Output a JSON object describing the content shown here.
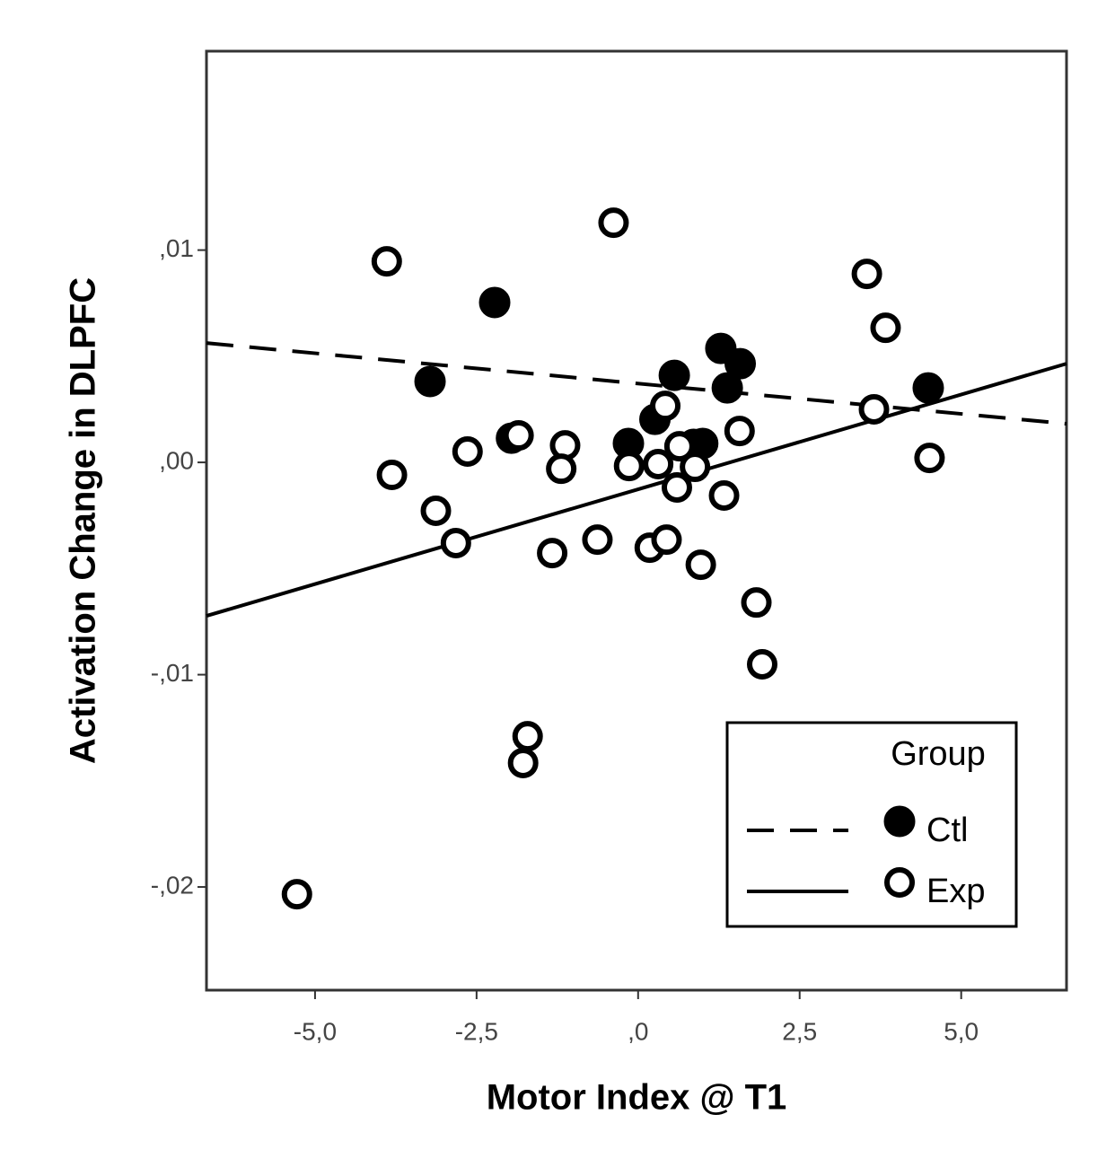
{
  "chart_data": {
    "type": "scatter",
    "x_label": "Motor Index @ T1",
    "y_label": "Activation Change in DLPFC",
    "xlim": [
      -6.68,
      6.63
    ],
    "ylim": [
      -0.02486,
      0.01937
    ],
    "xticks": [
      {
        "value": -5,
        "label": "-5,0"
      },
      {
        "value": -2.5,
        "label": "-2,5"
      },
      {
        "value": 0,
        "label": ",0"
      },
      {
        "value": 2.5,
        "label": "2,5"
      },
      {
        "value": 5,
        "label": "5,0"
      }
    ],
    "yticks": [
      {
        "value": -0.02,
        "label": "-,02"
      },
      {
        "value": -0.01,
        "label": "-,01"
      },
      {
        "value": 0,
        "label": ",00"
      },
      {
        "value": 0.01,
        "label": ",01"
      }
    ],
    "legend_title": "Group",
    "legend_position": "lower right",
    "series": [
      {
        "name": "Ctl",
        "color": "#000000",
        "marker": "filled",
        "line_style": "dashed",
        "x": [
          -2.22,
          -3.22,
          -1.96,
          -0.15,
          0.26,
          0.56,
          1.28,
          1.58,
          1.38,
          1.0,
          0.86,
          4.49
        ],
        "values": [
          0.00753,
          0.00381,
          0.00114,
          0.00089,
          0.00203,
          0.0041,
          0.00537,
          0.00465,
          0.00351,
          0.00089,
          0.00085,
          0.00351
        ],
        "fit": {
          "x": [
            -6.68,
            6.63
          ],
          "y": [
            0.00562,
            0.00182
          ]
        }
      },
      {
        "name": "Exp",
        "color": "#000000",
        "marker": "open",
        "line_style": "solid",
        "x": [
          -3.89,
          -0.38,
          3.54,
          3.83,
          3.65,
          4.51,
          -3.81,
          -3.13,
          -2.82,
          -2.64,
          -1.85,
          -1.13,
          -1.19,
          -1.33,
          -0.63,
          -0.14,
          0.31,
          0.42,
          0.64,
          0.6,
          0.18,
          0.44,
          0.97,
          0.88,
          1.33,
          1.57,
          1.83,
          1.92,
          -1.71,
          -1.78,
          -5.28
        ],
        "values": [
          0.00947,
          0.01129,
          0.00888,
          0.00634,
          0.0025,
          0.00021,
          -0.00059,
          -0.00228,
          -0.0038,
          0.00051,
          0.00127,
          0.0008,
          -0.0003,
          -0.00427,
          -0.00364,
          -0.00017,
          -8e-05,
          0.00266,
          0.00076,
          -0.00118,
          -0.00402,
          -0.00364,
          -0.00482,
          -0.00021,
          -0.00156,
          0.00148,
          -0.0066,
          -0.00951,
          -0.0129,
          -0.01416,
          -0.02034
        ],
        "fit": {
          "x": [
            -6.68,
            6.63
          ],
          "y": [
            -0.00723,
            0.00465
          ]
        }
      }
    ]
  }
}
